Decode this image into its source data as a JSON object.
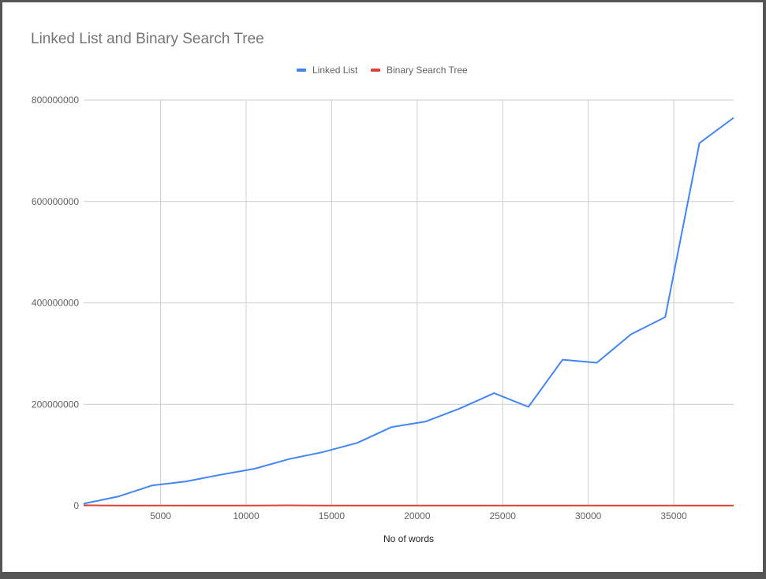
{
  "colors": {
    "series_linked_list": "#4285F4",
    "series_bst": "#DB4437",
    "grid": "#cccccc",
    "zero_line": "#333333",
    "background": "#ffffff"
  },
  "chart_data": {
    "type": "line",
    "title": "Linked List and Binary Search Tree",
    "xlabel": "No of words",
    "ylabel": "",
    "xlim": [
      500,
      38500
    ],
    "ylim": [
      0,
      800000000
    ],
    "x_ticks": [
      5000,
      10000,
      15000,
      20000,
      25000,
      30000,
      35000
    ],
    "x_tick_labels": [
      "5000",
      "10000",
      "15000",
      "20000",
      "25000",
      "30000",
      "35000"
    ],
    "y_ticks": [
      0,
      200000000,
      400000000,
      600000000,
      800000000
    ],
    "y_tick_labels": [
      "0",
      "200000000",
      "400000000",
      "600000000",
      "800000000"
    ],
    "grid": true,
    "legend_position": "top",
    "series": [
      {
        "name": "Linked List",
        "color": "#4285F4",
        "x": [
          500,
          2500,
          4500,
          6500,
          8500,
          10500,
          12500,
          14500,
          16500,
          18500,
          20500,
          22500,
          24500,
          26500,
          28500,
          30500,
          32500,
          34500,
          36500,
          38500
        ],
        "y": [
          4000000,
          18000000,
          40000000,
          48000000,
          61000000,
          73000000,
          92000000,
          106000000,
          124000000,
          155000000,
          166000000,
          192000000,
          222000000,
          195000000,
          288000000,
          282000000,
          338000000,
          372000000,
          715000000,
          765000000
        ]
      },
      {
        "name": "Binary Search Tree",
        "color": "#DB4437",
        "x": [
          500,
          2500,
          4500,
          6500,
          8500,
          10500,
          12500,
          14500,
          16500,
          18500,
          20500,
          22500,
          24500,
          26500,
          28500,
          30500,
          32500,
          34500,
          36500,
          38500
        ],
        "y": [
          1000000,
          300000,
          300000,
          300000,
          300000,
          300000,
          800000,
          300000,
          300000,
          300000,
          300000,
          300000,
          300000,
          300000,
          300000,
          300000,
          300000,
          300000,
          300000,
          300000
        ]
      }
    ]
  }
}
